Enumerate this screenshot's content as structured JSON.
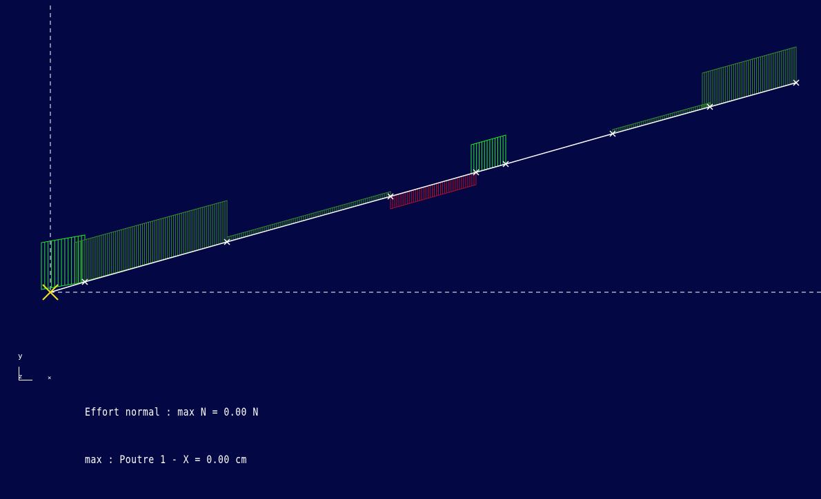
{
  "colors": {
    "background": "#030845",
    "axis": "#ffffff",
    "beam": "#ffffff",
    "positive_bright": "#22ee22",
    "positive_dark": "#3a8a2a",
    "negative": "#b0102a",
    "origin_marker": "#f0e020"
  },
  "triad": {
    "y_label": "y",
    "z_label": "z",
    "x_label": "×"
  },
  "status": {
    "line1": "Effort normal : max N = 0.00 N",
    "line2": "max : Poutre 1 - X = 0.00 cm"
  },
  "icons": {
    "origin": "origin-cross-icon",
    "node": "node-cross-icon"
  }
}
